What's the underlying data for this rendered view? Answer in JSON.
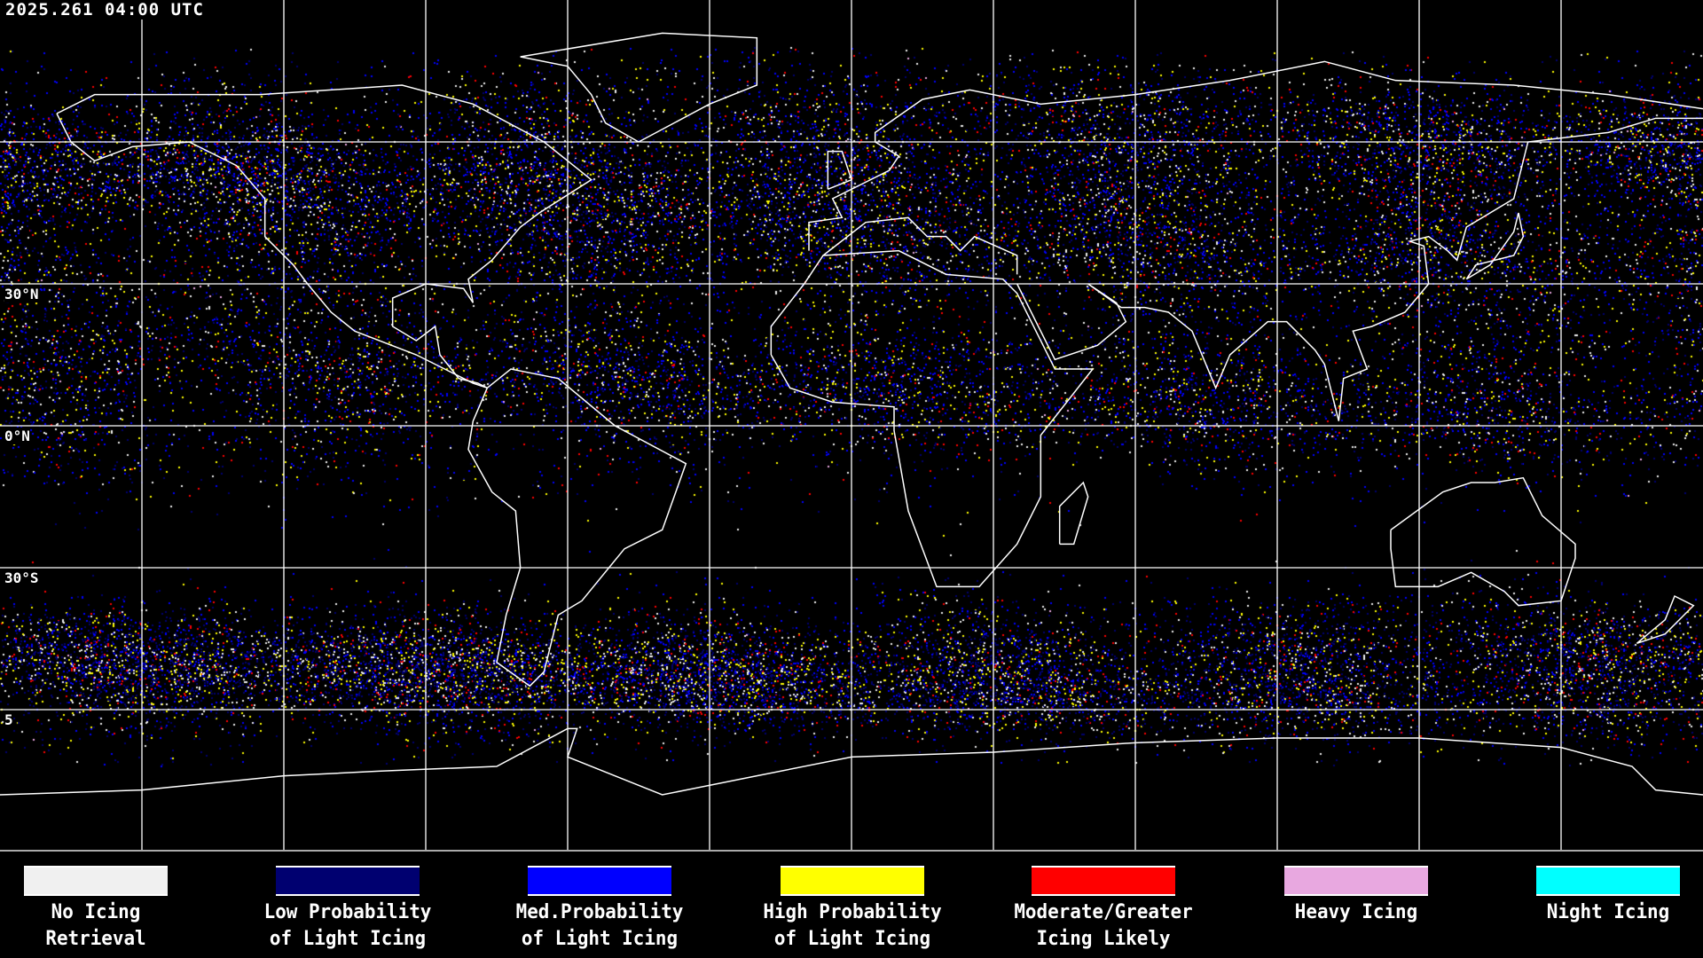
{
  "timestamp": "2025.261 04:00 UTC",
  "map": {
    "projection": "equirectangular",
    "lon_range": [
      -180,
      180
    ],
    "lat_range": [
      -90,
      90
    ],
    "grid_spacing_deg": 30,
    "lat_labels": [
      "30°N",
      "0°N",
      "30°S",
      "5"
    ]
  },
  "legend": [
    {
      "line1": "No Icing",
      "line2": "Retrieval",
      "color": "#f0f0f0"
    },
    {
      "line1": "Low Probability",
      "line2": "of Light Icing",
      "color": "#000070"
    },
    {
      "line1": "Med.Probability",
      "line2": "of Light Icing",
      "color": "#0000ff"
    },
    {
      "line1": "High Probability",
      "line2": "of Light Icing",
      "color": "#ffff00"
    },
    {
      "line1": "Moderate/Greater",
      "line2": "Icing Likely",
      "color": "#ff0000"
    },
    {
      "line1": "Heavy Icing",
      "line2": "",
      "color": "#e8a8e0"
    },
    {
      "line1": "Night Icing",
      "line2": "",
      "color": "#00ffff"
    }
  ]
}
